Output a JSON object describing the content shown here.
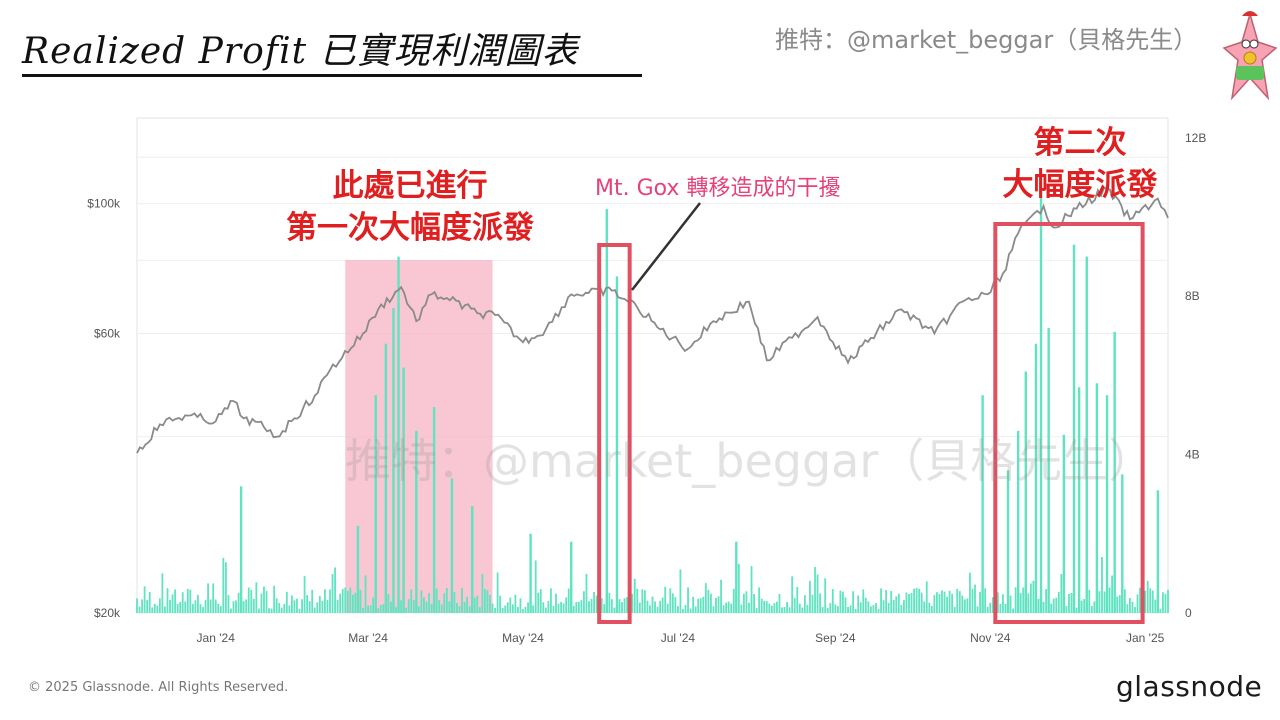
{
  "header": {
    "title": "Realized Profit 已實現利潤圖表",
    "handle": "推特：@market_beggar（貝格先生）"
  },
  "annotations": {
    "first_line1": "此處已進行",
    "first_line2": "第一次大幅度派發",
    "mtgox": "Mt. Gox 轉移造成的干擾",
    "second_line1": "第二次",
    "second_line2": "大幅度派發"
  },
  "watermark": "推特：@market_beggar（貝格先生）",
  "footer": {
    "copyright": "© 2025 Glassnode. All Rights Reserved.",
    "brand": "glassnode"
  },
  "colors": {
    "price_line": "#8a8a8a",
    "profit_bars": "#5fe3c0",
    "highlight_fill": "#f7b4c4",
    "box_stroke": "#e05060",
    "annotation_red": "#e02020",
    "annotation_pink": "#e6427a"
  },
  "chart_data": {
    "type": "bar",
    "x_range": [
      "2023-12-01",
      "2025-01-10"
    ],
    "x_ticks": [
      "Jan '24",
      "Mar '24",
      "May '24",
      "Jul '24",
      "Sep '24",
      "Nov '24",
      "Jan '25"
    ],
    "y_left": {
      "ticks": [
        "$20k",
        "$60k",
        "$100k"
      ],
      "scale": "log",
      "range": [
        20000,
        140000
      ]
    },
    "y_right": {
      "ticks": [
        "0",
        "4B",
        "8B",
        "12B"
      ],
      "range": [
        0,
        12500000000
      ]
    },
    "series": [
      {
        "kind": "line",
        "axis": "left",
        "points": [
          [
            "2023-12-01",
            37500
          ],
          [
            "2023-12-10",
            42000
          ],
          [
            "2023-12-20",
            43500
          ],
          [
            "2024-01-01",
            42500
          ],
          [
            "2024-01-08",
            46000
          ],
          [
            "2024-01-12",
            43000
          ],
          [
            "2024-01-20",
            41500
          ],
          [
            "2024-01-25",
            40000
          ],
          [
            "2024-02-01",
            43000
          ],
          [
            "2024-02-09",
            47000
          ],
          [
            "2024-02-15",
            52000
          ],
          [
            "2024-02-28",
            60000
          ],
          [
            "2024-03-05",
            66000
          ],
          [
            "2024-03-14",
            72000
          ],
          [
            "2024-03-20",
            63000
          ],
          [
            "2024-03-26",
            70000
          ],
          [
            "2024-04-01",
            69000
          ],
          [
            "2024-04-13",
            65000
          ],
          [
            "2024-04-20",
            64500
          ],
          [
            "2024-05-01",
            58000
          ],
          [
            "2024-05-10",
            61000
          ],
          [
            "2024-05-20",
            70000
          ],
          [
            "2024-06-05",
            71000
          ],
          [
            "2024-06-15",
            66500
          ],
          [
            "2024-06-24",
            61000
          ],
          [
            "2024-07-05",
            56500
          ],
          [
            "2024-07-15",
            63000
          ],
          [
            "2024-07-29",
            68000
          ],
          [
            "2024-08-05",
            54000
          ],
          [
            "2024-08-15",
            59000
          ],
          [
            "2024-08-25",
            64000
          ],
          [
            "2024-09-06",
            53500
          ],
          [
            "2024-09-15",
            59000
          ],
          [
            "2024-09-27",
            66000
          ],
          [
            "2024-10-10",
            60000
          ],
          [
            "2024-10-21",
            68000
          ],
          [
            "2024-10-31",
            70000
          ],
          [
            "2024-11-06",
            76000
          ],
          [
            "2024-11-12",
            89000
          ],
          [
            "2024-11-22",
            99000
          ],
          [
            "2024-11-26",
            91000
          ],
          [
            "2024-12-05",
            98000
          ],
          [
            "2024-12-17",
            106000
          ],
          [
            "2024-12-26",
            94000
          ],
          [
            "2025-01-06",
            102000
          ],
          [
            "2025-01-10",
            94500
          ]
        ]
      },
      {
        "kind": "bars",
        "axis": "right",
        "spikes": [
          [
            "2024-01-11",
            3200000000
          ],
          [
            "2024-02-26",
            2200000000
          ],
          [
            "2024-03-04",
            5500000000
          ],
          [
            "2024-03-08",
            6800000000
          ],
          [
            "2024-03-11",
            7700000000
          ],
          [
            "2024-03-13",
            9000000000
          ],
          [
            "2024-03-15",
            6200000000
          ],
          [
            "2024-03-20",
            4600000000
          ],
          [
            "2024-03-27",
            5200000000
          ],
          [
            "2024-04-03",
            3400000000
          ],
          [
            "2024-04-11",
            2700000000
          ],
          [
            "2024-05-04",
            2000000000
          ],
          [
            "2024-05-20",
            1800000000
          ],
          [
            "2024-06-03",
            10200000000
          ],
          [
            "2024-06-07",
            8500000000
          ],
          [
            "2024-07-24",
            1800000000
          ],
          [
            "2024-10-29",
            5500000000
          ],
          [
            "2024-11-08",
            3600000000
          ],
          [
            "2024-11-12",
            4600000000
          ],
          [
            "2024-11-15",
            6100000000
          ],
          [
            "2024-11-19",
            6800000000
          ],
          [
            "2024-11-21",
            10500000000
          ],
          [
            "2024-11-24",
            7200000000
          ],
          [
            "2024-11-30",
            4500000000
          ],
          [
            "2024-12-04",
            9300000000
          ],
          [
            "2024-12-06",
            5700000000
          ],
          [
            "2024-12-09",
            9000000000
          ],
          [
            "2024-12-13",
            5800000000
          ],
          [
            "2024-12-17",
            5500000000
          ],
          [
            "2024-12-20",
            7100000000
          ],
          [
            "2024-12-23",
            3500000000
          ],
          [
            "2025-01-06",
            3100000000
          ]
        ],
        "baseline_note": "dense small daily bars between 0.1B and 1B"
      }
    ],
    "highlights": [
      {
        "kind": "shaded",
        "from": "2024-02-21",
        "to": "2024-04-19"
      },
      {
        "kind": "box",
        "from": "2024-05-31",
        "to": "2024-06-12"
      },
      {
        "kind": "box",
        "from": "2024-11-03",
        "to": "2024-12-31"
      }
    ]
  }
}
